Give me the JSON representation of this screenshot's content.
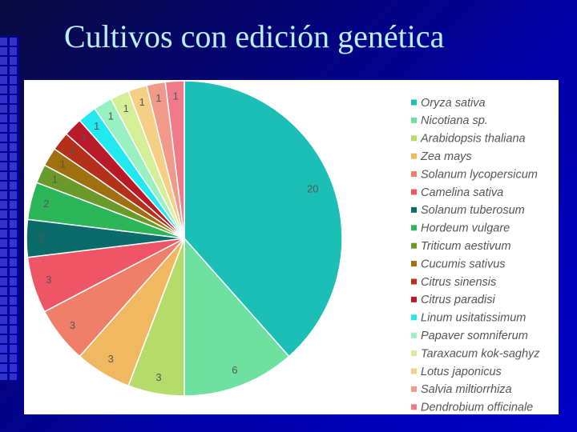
{
  "chart_data": {
    "type": "pie",
    "title": "Cultivos con edición genética",
    "categories": [
      "Oryza sativa",
      "Nicotiana sp.",
      "Arabidopsis thaliana",
      "Zea mays",
      "Solanum lycopersicum",
      "Camelina sativa",
      "Solanum tuberosum",
      "Hordeum vulgare",
      "Triticum aestivum",
      "Cucumis sativus",
      "Citrus sinensis",
      "Citrus paradisi",
      "Linum usitatissimum",
      "Papaver somniferum",
      "Taraxacum kok-saghyz",
      "Lotus japonicus",
      "Salvia miltiorrhiza",
      "Dendrobium officinale"
    ],
    "values": [
      20,
      6,
      3,
      3,
      3,
      3,
      2,
      2,
      1,
      1,
      1,
      1,
      1,
      1,
      1,
      1,
      1,
      1
    ],
    "colors": [
      "#1bbfb5",
      "#6ee0a0",
      "#b5dc6a",
      "#f0b860",
      "#f07f6a",
      "#ee5566",
      "#0b6b6b",
      "#2db55a",
      "#6a9a2a",
      "#a07010",
      "#b5301a",
      "#b81a2a",
      "#22e8f0",
      "#99f0c0",
      "#d5ef99",
      "#f5cf85",
      "#f29a8a",
      "#f07a8a"
    ],
    "legend": "right"
  }
}
